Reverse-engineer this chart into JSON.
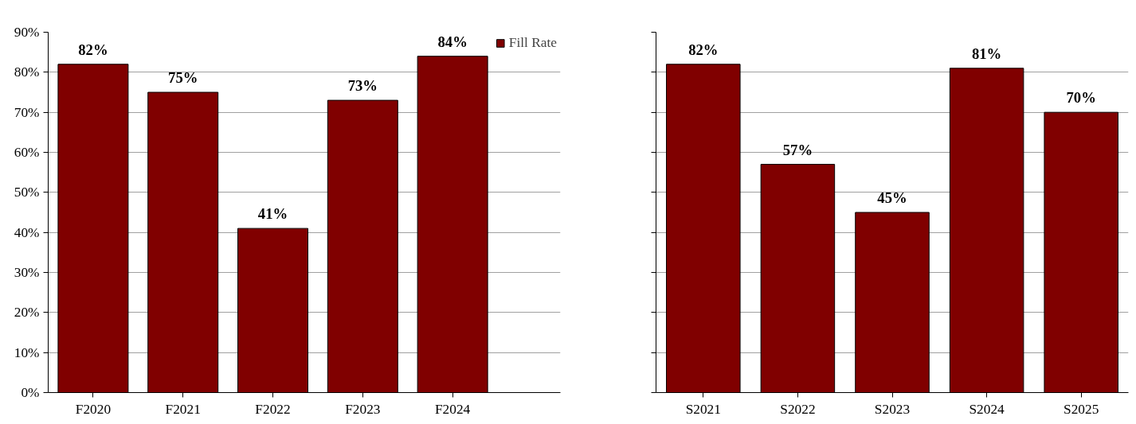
{
  "chart_data": [
    {
      "type": "bar",
      "categories": [
        "F2020",
        "F2021",
        "F2022",
        "F2023",
        "F2024"
      ],
      "series": [
        {
          "name": "Fill Rate",
          "color": "#800000",
          "values": [
            82,
            75,
            41,
            73,
            84
          ],
          "value_labels": [
            "82%",
            "75%",
            "41%",
            "73%",
            "84%"
          ]
        }
      ],
      "ylim": [
        0,
        90
      ],
      "yticks": [
        {
          "value": 0,
          "label": "0%"
        },
        {
          "value": 10,
          "label": "10%"
        },
        {
          "value": 20,
          "label": "20%"
        },
        {
          "value": 30,
          "label": "30%"
        },
        {
          "value": 40,
          "label": "40%"
        },
        {
          "value": 50,
          "label": "50%"
        },
        {
          "value": 60,
          "label": "60%"
        },
        {
          "value": 70,
          "label": "70%"
        },
        {
          "value": 80,
          "label": "80%"
        },
        {
          "value": 90,
          "label": "90%"
        }
      ],
      "grid": "y",
      "legend": "top"
    },
    {
      "type": "bar",
      "categories": [
        "S2021",
        "S2022",
        "S2023",
        "S2024",
        "S2025"
      ],
      "series": [
        {
          "color": "#800000",
          "values": [
            82,
            57,
            45,
            81,
            70
          ],
          "value_labels": [
            "82%",
            "57%",
            "45%",
            "81%",
            "70%"
          ]
        }
      ],
      "ylim": [
        0,
        90
      ],
      "yticks": [
        0,
        10,
        20,
        30,
        40,
        50,
        60,
        70,
        80,
        90
      ],
      "grid": "y",
      "tick_labels": "x"
    }
  ]
}
